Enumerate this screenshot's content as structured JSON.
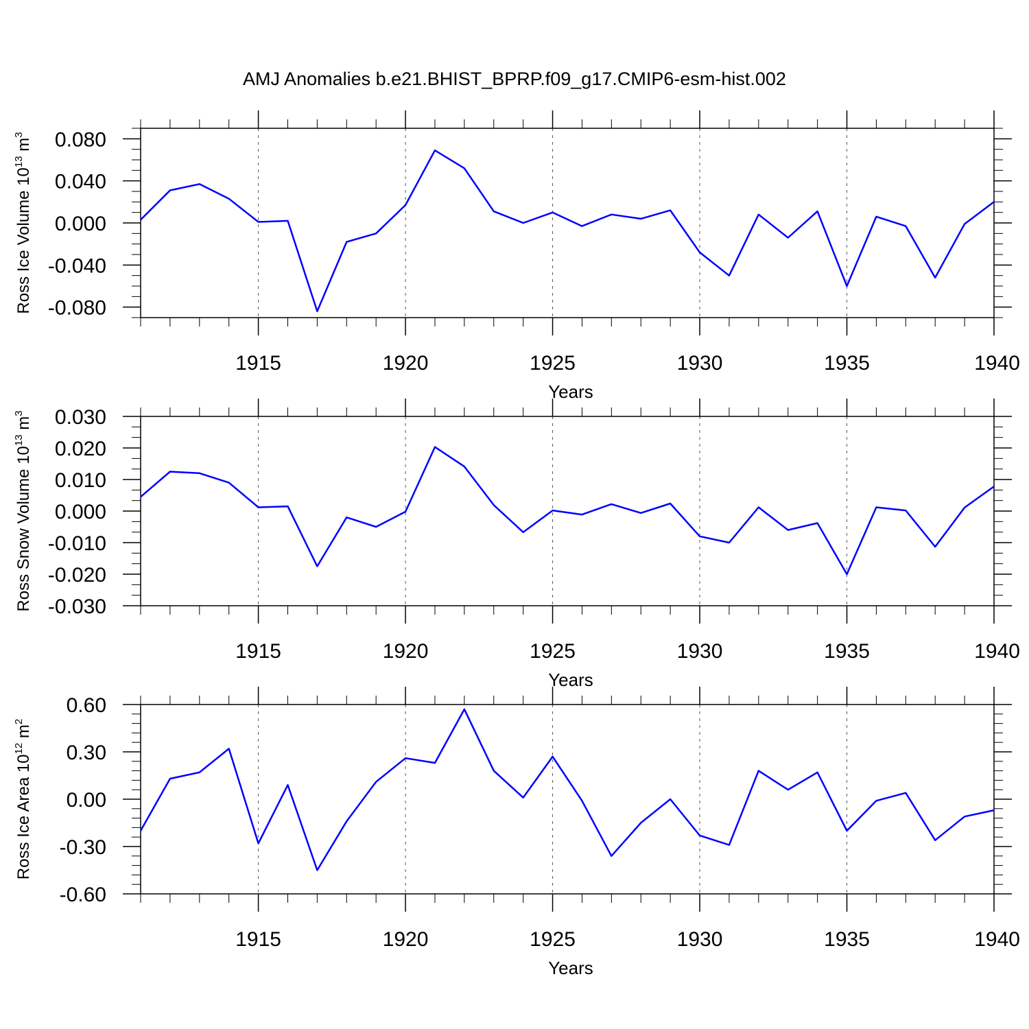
{
  "title": "AMJ Anomalies b.e21.BHIST_BPRP.f09_g17.CMIP6-esm-hist.002",
  "line_color": "#0000ff",
  "chart_data": [
    {
      "type": "line",
      "ylabel": {
        "text": "Ross Ice Volume 10",
        "exp": "13",
        "unit": " m",
        "unit_exp": "3"
      },
      "xlabel": "Years",
      "xlim": [
        1911,
        1940
      ],
      "ylim": [
        -0.09,
        0.09
      ],
      "yticks": [
        -0.08,
        -0.04,
        0.0,
        0.04,
        0.08
      ],
      "ytick_labels": [
        "-0.080",
        "-0.040",
        "0.000",
        "0.040",
        "0.080"
      ],
      "xticks": [
        1915,
        1920,
        1925,
        1930,
        1935,
        1940
      ],
      "xtick_labels": [
        "1915",
        "1920",
        "1925",
        "1930",
        "1935",
        "1940"
      ],
      "x": [
        1911,
        1912,
        1913,
        1914,
        1915,
        1916,
        1917,
        1918,
        1919,
        1920,
        1921,
        1922,
        1923,
        1924,
        1925,
        1926,
        1927,
        1928,
        1929,
        1930,
        1931,
        1932,
        1933,
        1934,
        1935,
        1936,
        1937,
        1938,
        1939,
        1940
      ],
      "values": [
        0.003,
        0.031,
        0.037,
        0.023,
        0.001,
        0.002,
        -0.084,
        -0.018,
        -0.01,
        0.017,
        0.069,
        0.052,
        0.011,
        0.0,
        0.01,
        -0.003,
        0.008,
        0.004,
        0.012,
        -0.028,
        -0.05,
        0.008,
        -0.014,
        0.011,
        -0.06,
        0.006,
        -0.003,
        -0.052,
        -0.001,
        0.02
      ]
    },
    {
      "type": "line",
      "ylabel": {
        "text": "Ross Snow Volume 10",
        "exp": "13",
        "unit": " m",
        "unit_exp": "3"
      },
      "xlabel": "Years",
      "xlim": [
        1911,
        1940
      ],
      "ylim": [
        -0.03,
        0.03
      ],
      "yticks": [
        -0.03,
        -0.02,
        -0.01,
        0.0,
        0.01,
        0.02,
        0.03
      ],
      "ytick_labels": [
        "-0.030",
        "-0.020",
        "-0.010",
        "0.000",
        "0.010",
        "0.020",
        "0.030"
      ],
      "xticks": [
        1915,
        1920,
        1925,
        1930,
        1935,
        1940
      ],
      "xtick_labels": [
        "1915",
        "1920",
        "1925",
        "1930",
        "1935",
        "1940"
      ],
      "x": [
        1911,
        1912,
        1913,
        1914,
        1915,
        1916,
        1917,
        1918,
        1919,
        1920,
        1921,
        1922,
        1923,
        1924,
        1925,
        1926,
        1927,
        1928,
        1929,
        1930,
        1931,
        1932,
        1933,
        1934,
        1935,
        1936,
        1937,
        1938,
        1939,
        1940
      ],
      "values": [
        0.0045,
        0.0125,
        0.012,
        0.009,
        0.0012,
        0.0015,
        -0.0175,
        -0.002,
        -0.005,
        -0.0002,
        0.0203,
        0.0141,
        0.0019,
        -0.0067,
        0.0002,
        -0.0011,
        0.0022,
        -0.0006,
        0.0024,
        -0.008,
        -0.01,
        0.0012,
        -0.006,
        -0.0038,
        -0.02,
        0.0012,
        0.0002,
        -0.0113,
        0.0011,
        0.0078
      ]
    },
    {
      "type": "line",
      "ylabel": {
        "text": "Ross Ice Area 10",
        "exp": "12",
        "unit": " m",
        "unit_exp": "2"
      },
      "xlabel": "Years",
      "xlim": [
        1911,
        1940
      ],
      "ylim": [
        -0.6,
        0.6
      ],
      "yticks": [
        -0.6,
        -0.3,
        0.0,
        0.3,
        0.6
      ],
      "ytick_labels": [
        "-0.60",
        "-0.30",
        "0.00",
        "0.30",
        "0.60"
      ],
      "xticks": [
        1915,
        1920,
        1925,
        1930,
        1935,
        1940
      ],
      "xtick_labels": [
        "1915",
        "1920",
        "1925",
        "1930",
        "1935",
        "1940"
      ],
      "x": [
        1911,
        1912,
        1913,
        1914,
        1915,
        1916,
        1917,
        1918,
        1919,
        1920,
        1921,
        1922,
        1923,
        1924,
        1925,
        1926,
        1927,
        1928,
        1929,
        1930,
        1931,
        1932,
        1933,
        1934,
        1935,
        1936,
        1937,
        1938,
        1939,
        1940
      ],
      "values": [
        -0.2,
        0.13,
        0.17,
        0.32,
        -0.28,
        0.09,
        -0.45,
        -0.14,
        0.11,
        0.26,
        0.23,
        0.57,
        0.18,
        0.01,
        0.27,
        -0.01,
        -0.36,
        -0.15,
        0.0,
        -0.23,
        -0.29,
        0.18,
        0.06,
        0.17,
        -0.2,
        -0.01,
        0.04,
        -0.26,
        -0.11,
        -0.07
      ]
    }
  ]
}
